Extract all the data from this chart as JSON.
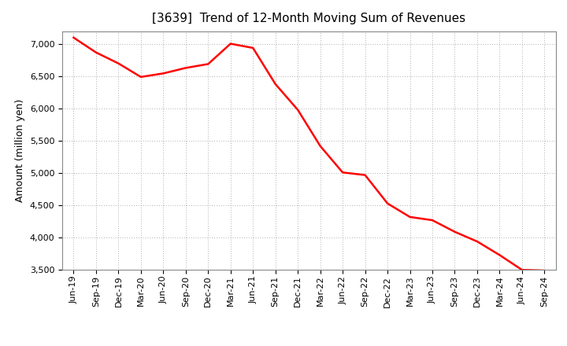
{
  "title": "[3639]  Trend of 12-Month Moving Sum of Revenues",
  "ylabel": "Amount (million yen)",
  "line_color": "#FF0000",
  "line_width": 1.8,
  "background_color": "#FFFFFF",
  "plot_bg_color": "#FFFFFF",
  "grid_color": "#999999",
  "ylim": [
    3500,
    7200
  ],
  "yticks": [
    3500,
    4000,
    4500,
    5000,
    5500,
    6000,
    6500,
    7000
  ],
  "x_labels": [
    "Jun-19",
    "Sep-19",
    "Dec-19",
    "Mar-20",
    "Jun-20",
    "Sep-20",
    "Dec-20",
    "Mar-21",
    "Jun-21",
    "Sep-21",
    "Dec-21",
    "Mar-22",
    "Jun-22",
    "Sep-22",
    "Dec-22",
    "Mar-23",
    "Jun-23",
    "Sep-23",
    "Dec-23",
    "Mar-24",
    "Jun-24",
    "Sep-24"
  ],
  "y_values": [
    7100,
    6870,
    6700,
    6490,
    6545,
    6630,
    6690,
    7005,
    6940,
    6380,
    5980,
    5420,
    5010,
    4970,
    4530,
    4320,
    4270,
    4090,
    3940,
    3730,
    3500,
    3490
  ],
  "title_fontsize": 11,
  "ylabel_fontsize": 9,
  "tick_fontsize": 8
}
